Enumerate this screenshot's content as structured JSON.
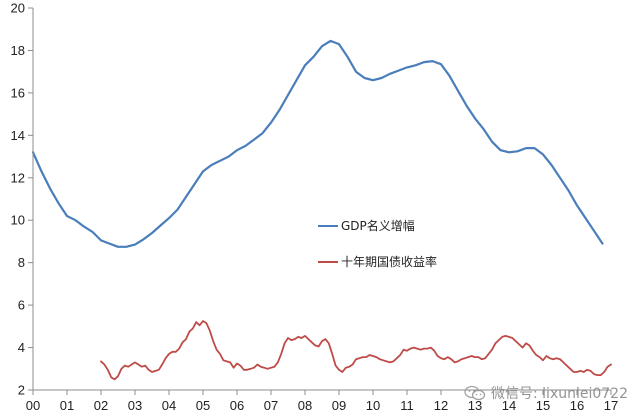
{
  "chart_data": {
    "type": "line",
    "title": "",
    "xlabel": "",
    "ylabel": "",
    "xlim": [
      2000,
      2017
    ],
    "ylim": [
      2,
      20
    ],
    "yticks": [
      2,
      4,
      6,
      8,
      10,
      12,
      14,
      16,
      18,
      20
    ],
    "xticks": [
      {
        "value": 2000,
        "label": "00"
      },
      {
        "value": 2001,
        "label": "01"
      },
      {
        "value": 2002,
        "label": "02"
      },
      {
        "value": 2003,
        "label": "03"
      },
      {
        "value": 2004,
        "label": "04"
      },
      {
        "value": 2005,
        "label": "05"
      },
      {
        "value": 2006,
        "label": "06"
      },
      {
        "value": 2007,
        "label": "07"
      },
      {
        "value": 2008,
        "label": "08"
      },
      {
        "value": 2009,
        "label": "09"
      },
      {
        "value": 2010,
        "label": "10"
      },
      {
        "value": 2011,
        "label": "11"
      },
      {
        "value": 2012,
        "label": "12"
      },
      {
        "value": 2013,
        "label": "13"
      },
      {
        "value": 2014,
        "label": "14"
      },
      {
        "value": 2015,
        "label": "15"
      },
      {
        "value": 2016,
        "label": "16"
      },
      {
        "value": 2017,
        "label": "17"
      }
    ],
    "grid": false,
    "legend_position": "center-right",
    "series": [
      {
        "name": "GDP名义增幅",
        "color": "#4a7ebb",
        "points": [
          [
            2000.0,
            13.2
          ],
          [
            2000.25,
            12.3
          ],
          [
            2000.5,
            11.5
          ],
          [
            2000.75,
            10.8
          ],
          [
            2001.0,
            10.2
          ],
          [
            2001.25,
            10.0
          ],
          [
            2001.5,
            9.7
          ],
          [
            2001.75,
            9.45
          ],
          [
            2002.0,
            9.05
          ],
          [
            2002.25,
            8.9
          ],
          [
            2002.5,
            8.75
          ],
          [
            2002.75,
            8.75
          ],
          [
            2003.0,
            8.85
          ],
          [
            2003.25,
            9.1
          ],
          [
            2003.5,
            9.4
          ],
          [
            2003.75,
            9.75
          ],
          [
            2004.0,
            10.1
          ],
          [
            2004.25,
            10.5
          ],
          [
            2004.5,
            11.1
          ],
          [
            2004.75,
            11.7
          ],
          [
            2005.0,
            12.3
          ],
          [
            2005.25,
            12.6
          ],
          [
            2005.5,
            12.8
          ],
          [
            2005.75,
            13.0
          ],
          [
            2006.0,
            13.3
          ],
          [
            2006.25,
            13.5
          ],
          [
            2006.5,
            13.8
          ],
          [
            2006.75,
            14.1
          ],
          [
            2007.0,
            14.6
          ],
          [
            2007.25,
            15.2
          ],
          [
            2007.5,
            15.9
          ],
          [
            2007.75,
            16.6
          ],
          [
            2008.0,
            17.3
          ],
          [
            2008.25,
            17.7
          ],
          [
            2008.5,
            18.2
          ],
          [
            2008.75,
            18.45
          ],
          [
            2009.0,
            18.3
          ],
          [
            2009.25,
            17.7
          ],
          [
            2009.5,
            17.0
          ],
          [
            2009.75,
            16.7
          ],
          [
            2010.0,
            16.6
          ],
          [
            2010.25,
            16.7
          ],
          [
            2010.5,
            16.9
          ],
          [
            2010.75,
            17.05
          ],
          [
            2011.0,
            17.2
          ],
          [
            2011.25,
            17.3
          ],
          [
            2011.5,
            17.45
          ],
          [
            2011.75,
            17.5
          ],
          [
            2012.0,
            17.35
          ],
          [
            2012.25,
            16.8
          ],
          [
            2012.5,
            16.1
          ],
          [
            2012.75,
            15.4
          ],
          [
            2013.0,
            14.8
          ],
          [
            2013.25,
            14.3
          ],
          [
            2013.5,
            13.7
          ],
          [
            2013.75,
            13.3
          ],
          [
            2014.0,
            13.2
          ],
          [
            2014.25,
            13.25
          ],
          [
            2014.5,
            13.4
          ],
          [
            2014.75,
            13.4
          ],
          [
            2015.0,
            13.1
          ],
          [
            2015.25,
            12.6
          ],
          [
            2015.5,
            12.0
          ],
          [
            2015.75,
            11.4
          ],
          [
            2016.0,
            10.7
          ],
          [
            2016.25,
            10.1
          ],
          [
            2016.5,
            9.5
          ],
          [
            2016.75,
            8.9
          ]
        ]
      },
      {
        "name": "十年期国债收益率",
        "color": "#be4b48",
        "points": [
          [
            2002.0,
            3.35
          ],
          [
            2002.1,
            3.2
          ],
          [
            2002.2,
            2.95
          ],
          [
            2002.3,
            2.6
          ],
          [
            2002.4,
            2.5
          ],
          [
            2002.5,
            2.65
          ],
          [
            2002.6,
            3.0
          ],
          [
            2002.7,
            3.15
          ],
          [
            2002.8,
            3.1
          ],
          [
            2002.9,
            3.2
          ],
          [
            2003.0,
            3.3
          ],
          [
            2003.1,
            3.2
          ],
          [
            2003.2,
            3.1
          ],
          [
            2003.3,
            3.15
          ],
          [
            2003.4,
            2.95
          ],
          [
            2003.5,
            2.85
          ],
          [
            2003.6,
            2.9
          ],
          [
            2003.7,
            2.95
          ],
          [
            2003.8,
            3.2
          ],
          [
            2003.9,
            3.5
          ],
          [
            2004.0,
            3.7
          ],
          [
            2004.1,
            3.8
          ],
          [
            2004.2,
            3.8
          ],
          [
            2004.3,
            3.95
          ],
          [
            2004.4,
            4.25
          ],
          [
            2004.5,
            4.4
          ],
          [
            2004.6,
            4.75
          ],
          [
            2004.7,
            4.9
          ],
          [
            2004.8,
            5.2
          ],
          [
            2004.9,
            5.05
          ],
          [
            2005.0,
            5.25
          ],
          [
            2005.1,
            5.15
          ],
          [
            2005.2,
            4.8
          ],
          [
            2005.3,
            4.3
          ],
          [
            2005.4,
            3.9
          ],
          [
            2005.5,
            3.7
          ],
          [
            2005.6,
            3.4
          ],
          [
            2005.7,
            3.35
          ],
          [
            2005.8,
            3.3
          ],
          [
            2005.9,
            3.05
          ],
          [
            2006.0,
            3.25
          ],
          [
            2006.1,
            3.15
          ],
          [
            2006.2,
            2.95
          ],
          [
            2006.3,
            2.95
          ],
          [
            2006.4,
            3.0
          ],
          [
            2006.5,
            3.05
          ],
          [
            2006.6,
            3.2
          ],
          [
            2006.7,
            3.1
          ],
          [
            2006.8,
            3.05
          ],
          [
            2006.9,
            3.0
          ],
          [
            2007.0,
            3.05
          ],
          [
            2007.1,
            3.1
          ],
          [
            2007.2,
            3.3
          ],
          [
            2007.3,
            3.7
          ],
          [
            2007.4,
            4.2
          ],
          [
            2007.5,
            4.45
          ],
          [
            2007.6,
            4.35
          ],
          [
            2007.7,
            4.4
          ],
          [
            2007.8,
            4.5
          ],
          [
            2007.9,
            4.45
          ],
          [
            2008.0,
            4.55
          ],
          [
            2008.1,
            4.4
          ],
          [
            2008.2,
            4.25
          ],
          [
            2008.3,
            4.1
          ],
          [
            2008.4,
            4.05
          ],
          [
            2008.5,
            4.3
          ],
          [
            2008.6,
            4.4
          ],
          [
            2008.7,
            4.2
          ],
          [
            2008.8,
            3.7
          ],
          [
            2008.9,
            3.15
          ],
          [
            2009.0,
            2.95
          ],
          [
            2009.1,
            2.85
          ],
          [
            2009.2,
            3.05
          ],
          [
            2009.3,
            3.1
          ],
          [
            2009.4,
            3.2
          ],
          [
            2009.5,
            3.45
          ],
          [
            2009.6,
            3.5
          ],
          [
            2009.7,
            3.55
          ],
          [
            2009.8,
            3.55
          ],
          [
            2009.9,
            3.65
          ],
          [
            2010.0,
            3.6
          ],
          [
            2010.1,
            3.55
          ],
          [
            2010.2,
            3.45
          ],
          [
            2010.3,
            3.4
          ],
          [
            2010.4,
            3.35
          ],
          [
            2010.5,
            3.3
          ],
          [
            2010.6,
            3.35
          ],
          [
            2010.7,
            3.5
          ],
          [
            2010.8,
            3.65
          ],
          [
            2010.9,
            3.9
          ],
          [
            2011.0,
            3.85
          ],
          [
            2011.1,
            3.95
          ],
          [
            2011.2,
            4.0
          ],
          [
            2011.3,
            3.95
          ],
          [
            2011.4,
            3.9
          ],
          [
            2011.5,
            3.95
          ],
          [
            2011.6,
            3.95
          ],
          [
            2011.7,
            4.0
          ],
          [
            2011.8,
            3.85
          ],
          [
            2011.9,
            3.6
          ],
          [
            2012.0,
            3.5
          ],
          [
            2012.1,
            3.45
          ],
          [
            2012.2,
            3.55
          ],
          [
            2012.3,
            3.45
          ],
          [
            2012.4,
            3.3
          ],
          [
            2012.5,
            3.35
          ],
          [
            2012.6,
            3.45
          ],
          [
            2012.7,
            3.5
          ],
          [
            2012.8,
            3.55
          ],
          [
            2012.9,
            3.6
          ],
          [
            2013.0,
            3.55
          ],
          [
            2013.1,
            3.55
          ],
          [
            2013.2,
            3.45
          ],
          [
            2013.3,
            3.5
          ],
          [
            2013.4,
            3.7
          ],
          [
            2013.5,
            3.9
          ],
          [
            2013.6,
            4.2
          ],
          [
            2013.7,
            4.35
          ],
          [
            2013.8,
            4.5
          ],
          [
            2013.9,
            4.55
          ],
          [
            2014.0,
            4.5
          ],
          [
            2014.1,
            4.45
          ],
          [
            2014.2,
            4.3
          ],
          [
            2014.3,
            4.15
          ],
          [
            2014.4,
            4.0
          ],
          [
            2014.5,
            4.2
          ],
          [
            2014.6,
            4.1
          ],
          [
            2014.7,
            3.85
          ],
          [
            2014.8,
            3.65
          ],
          [
            2014.9,
            3.55
          ],
          [
            2015.0,
            3.4
          ],
          [
            2015.1,
            3.6
          ],
          [
            2015.2,
            3.5
          ],
          [
            2015.3,
            3.45
          ],
          [
            2015.4,
            3.5
          ],
          [
            2015.5,
            3.45
          ],
          [
            2015.6,
            3.3
          ],
          [
            2015.7,
            3.15
          ],
          [
            2015.8,
            3.0
          ],
          [
            2015.9,
            2.85
          ],
          [
            2016.0,
            2.85
          ],
          [
            2016.1,
            2.9
          ],
          [
            2016.2,
            2.85
          ],
          [
            2016.3,
            2.95
          ],
          [
            2016.4,
            2.9
          ],
          [
            2016.5,
            2.75
          ],
          [
            2016.6,
            2.7
          ],
          [
            2016.7,
            2.7
          ],
          [
            2016.8,
            2.85
          ],
          [
            2016.9,
            3.1
          ],
          [
            2017.0,
            3.2
          ]
        ]
      }
    ]
  },
  "watermark": {
    "text": "微信号: lixunlei0722",
    "icon": "wechat-icon"
  }
}
